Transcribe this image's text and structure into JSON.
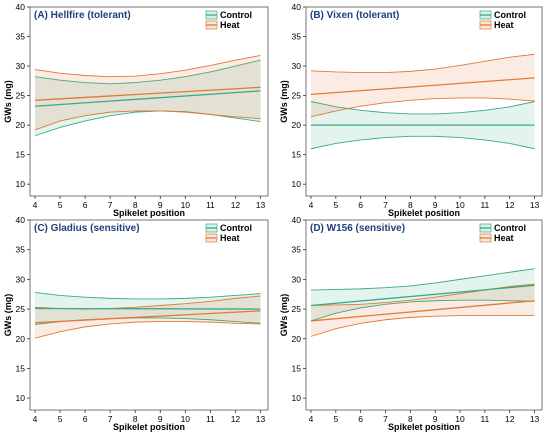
{
  "chart_data": [
    {
      "type": "line",
      "title": "(A) Hellfire (tolerant)",
      "title_color": "#1f3f7a",
      "xlabel": "Spikelet position",
      "ylabel": "GWs (mg)",
      "xlim": [
        3.8,
        13.3
      ],
      "ylim": [
        8,
        40
      ],
      "xticks": [
        4,
        5,
        6,
        7,
        8,
        9,
        10,
        11,
        12,
        13
      ],
      "yticks": [
        10,
        15,
        20,
        25,
        30,
        35,
        40
      ],
      "legend_position": "top-right",
      "series": [
        {
          "name": "Control",
          "color": "#3aaa88",
          "x": [
            4,
            13
          ],
          "y": [
            23.2,
            25.8
          ],
          "band": {
            "x": [
              4,
              5,
              6,
              7,
              8,
              9,
              10,
              11,
              12,
              13
            ],
            "lower": [
              18.2,
              19.6,
              20.7,
              21.6,
              22.2,
              22.4,
              22.3,
              21.8,
              21.2,
              20.6
            ],
            "upper": [
              28.2,
              27.6,
              27.2,
              27.0,
              27.2,
              27.6,
              28.2,
              29.0,
              30.0,
              31.0
            ]
          }
        },
        {
          "name": "Heat",
          "color": "#e07a3a",
          "x": [
            4,
            13
          ],
          "y": [
            24.2,
            26.4
          ],
          "band": {
            "x": [
              4,
              5,
              6,
              7,
              8,
              9,
              10,
              11,
              12,
              13
            ],
            "lower": [
              19.2,
              20.7,
              21.6,
              22.2,
              22.4,
              22.4,
              22.2,
              21.8,
              21.4,
              21.1
            ],
            "upper": [
              29.4,
              28.8,
              28.4,
              28.2,
              28.3,
              28.7,
              29.3,
              30.1,
              31.0,
              31.8
            ]
          }
        }
      ]
    },
    {
      "type": "line",
      "title": "(B) Vixen (tolerant)",
      "title_color": "#1f3f7a",
      "xlabel": "Spikelet position",
      "ylabel": "GWs (mg)",
      "xlim": [
        3.8,
        13.3
      ],
      "ylim": [
        8,
        40
      ],
      "xticks": [
        4,
        5,
        6,
        7,
        8,
        9,
        10,
        11,
        12,
        13
      ],
      "yticks": [
        10,
        15,
        20,
        25,
        30,
        35,
        40
      ],
      "legend_position": "top-right",
      "series": [
        {
          "name": "Control",
          "color": "#3aaa88",
          "x": [
            4,
            13
          ],
          "y": [
            20.0,
            20.0
          ],
          "band": {
            "x": [
              4,
              5,
              6,
              7,
              8,
              9,
              10,
              11,
              12,
              13
            ],
            "lower": [
              16.0,
              16.9,
              17.5,
              17.9,
              18.1,
              18.1,
              17.9,
              17.5,
              16.9,
              16.0
            ],
            "upper": [
              24.0,
              23.1,
              22.5,
              22.1,
              21.9,
              21.9,
              22.1,
              22.5,
              23.1,
              24.0
            ]
          }
        },
        {
          "name": "Heat",
          "color": "#e07a3a",
          "x": [
            4,
            13
          ],
          "y": [
            25.2,
            28.0
          ],
          "band": {
            "x": [
              4,
              5,
              6,
              7,
              8,
              9,
              10,
              11,
              12,
              13
            ],
            "lower": [
              21.4,
              22.4,
              23.2,
              23.8,
              24.2,
              24.5,
              24.6,
              24.6,
              24.4,
              24.1
            ],
            "upper": [
              29.2,
              29.0,
              28.9,
              28.9,
              29.1,
              29.5,
              30.1,
              30.8,
              31.5,
              32.0
            ]
          }
        }
      ]
    },
    {
      "type": "line",
      "title": "(C) Gladius (sensitive)",
      "title_color": "#1f3f7a",
      "xlabel": "Spikelet position",
      "ylabel": "GWs (mg)",
      "xlim": [
        3.8,
        13.3
      ],
      "ylim": [
        8,
        40
      ],
      "xticks": [
        4,
        5,
        6,
        7,
        8,
        9,
        10,
        11,
        12,
        13
      ],
      "yticks": [
        10,
        15,
        20,
        25,
        30,
        35,
        40
      ],
      "legend_position": "top-right",
      "series": [
        {
          "name": "Control",
          "color": "#3aaa88",
          "x": [
            4,
            13
          ],
          "y": [
            25.1,
            25.0
          ],
          "band": {
            "x": [
              4,
              5,
              6,
              7,
              8,
              9,
              10,
              11,
              12,
              13
            ],
            "lower": [
              22.4,
              22.9,
              23.2,
              23.4,
              23.5,
              23.5,
              23.4,
              23.2,
              22.9,
              22.6
            ],
            "upper": [
              27.8,
              27.3,
              27.0,
              26.8,
              26.7,
              26.7,
              26.8,
              27.0,
              27.3,
              27.6
            ]
          }
        },
        {
          "name": "Heat",
          "color": "#e07a3a",
          "x": [
            4,
            13
          ],
          "y": [
            22.7,
            24.7
          ],
          "band": {
            "x": [
              4,
              5,
              6,
              7,
              8,
              9,
              10,
              11,
              12,
              13
            ],
            "lower": [
              20.1,
              21.2,
              22.0,
              22.5,
              22.8,
              22.9,
              22.9,
              22.8,
              22.6,
              22.5
            ],
            "upper": [
              25.3,
              25.1,
              25.0,
              25.1,
              25.3,
              25.6,
              25.9,
              26.3,
              26.8,
              27.2
            ]
          }
        }
      ]
    },
    {
      "type": "line",
      "title": "(D) W156 (sensitive)",
      "title_color": "#1f3f7a",
      "xlabel": "Spikelet position",
      "ylabel": "GWs (mg)",
      "xlim": [
        3.8,
        13.3
      ],
      "ylim": [
        8,
        40
      ],
      "xticks": [
        4,
        5,
        6,
        7,
        8,
        9,
        10,
        11,
        12,
        13
      ],
      "yticks": [
        10,
        15,
        20,
        25,
        30,
        35,
        40
      ],
      "legend_position": "top-right",
      "series": [
        {
          "name": "Control",
          "color": "#3aaa88",
          "x": [
            4,
            13
          ],
          "y": [
            25.6,
            29.0
          ],
          "band": {
            "x": [
              4,
              5,
              6,
              7,
              8,
              9,
              10,
              11,
              12,
              13
            ],
            "lower": [
              23.0,
              24.3,
              25.2,
              25.8,
              26.2,
              26.4,
              26.5,
              26.5,
              26.4,
              26.3
            ],
            "upper": [
              28.2,
              28.3,
              28.4,
              28.6,
              28.9,
              29.4,
              30.0,
              30.6,
              31.2,
              31.8
            ]
          }
        },
        {
          "name": "Heat",
          "color": "#e07a3a",
          "x": [
            4,
            13
          ],
          "y": [
            23.0,
            26.4
          ],
          "band": {
            "x": [
              4,
              5,
              6,
              7,
              8,
              9,
              10,
              11,
              12,
              13
            ],
            "lower": [
              20.4,
              21.7,
              22.6,
              23.2,
              23.6,
              23.8,
              23.9,
              23.9,
              23.9,
              23.9
            ],
            "upper": [
              25.6,
              25.7,
              25.8,
              26.1,
              26.5,
              27.0,
              27.6,
              28.2,
              28.8,
              29.2
            ]
          }
        }
      ]
    }
  ]
}
